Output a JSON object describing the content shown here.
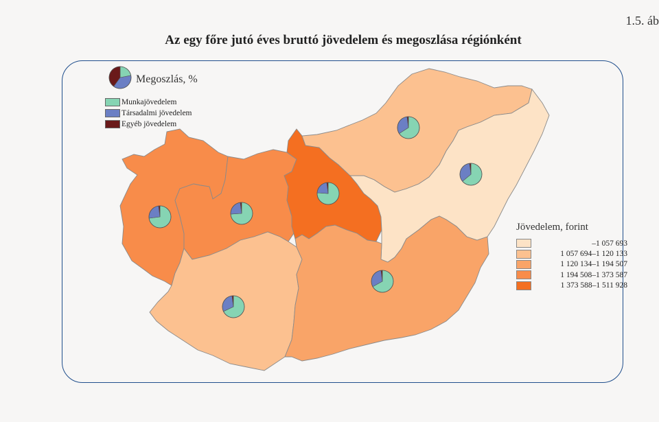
{
  "figure_label": "1.5. áb",
  "title": "Az egy főre jutó éves bruttó jövedelem és megoszlása régiónként",
  "share_legend": {
    "title": "Megoszlás, %",
    "items": [
      {
        "label": "Munkajövedelem",
        "color": "#86d4b3"
      },
      {
        "label": "Társadalmi jövedelem",
        "color": "#6b7fc4"
      },
      {
        "label": "Egyéb jövedelem",
        "color": "#6a1a1a"
      }
    ]
  },
  "income_legend": {
    "title": "Jövedelem, forint",
    "classes": [
      {
        "label": "–1 057 693",
        "color": "#fde3c6"
      },
      {
        "label": "1 057 694–1 120 133",
        "color": "#fcc190"
      },
      {
        "label": "1 120 134–1 194 507",
        "color": "#f9a468"
      },
      {
        "label": "1 194 508–1 373 587",
        "color": "#f88c4a"
      },
      {
        "label": "1 373 588–1 511 928",
        "color": "#f46f21"
      }
    ]
  },
  "regions": [
    {
      "id": "western-transdanubia",
      "income_class": 3,
      "shares": [
        0.73,
        0.25,
        0.02
      ]
    },
    {
      "id": "central-transdanubia",
      "income_class": 3,
      "shares": [
        0.74,
        0.24,
        0.02
      ]
    },
    {
      "id": "central-hungary",
      "income_class": 4,
      "shares": [
        0.76,
        0.22,
        0.02
      ]
    },
    {
      "id": "southern-transdanubia",
      "income_class": 1,
      "shares": [
        0.68,
        0.3,
        0.02
      ]
    },
    {
      "id": "northern-hungary",
      "income_class": 1,
      "shares": [
        0.66,
        0.32,
        0.02
      ]
    },
    {
      "id": "northern-great-plain",
      "income_class": 0,
      "shares": [
        0.64,
        0.34,
        0.02
      ]
    },
    {
      "id": "southern-great-plain",
      "income_class": 2,
      "shares": [
        0.67,
        0.31,
        0.02
      ]
    }
  ]
}
